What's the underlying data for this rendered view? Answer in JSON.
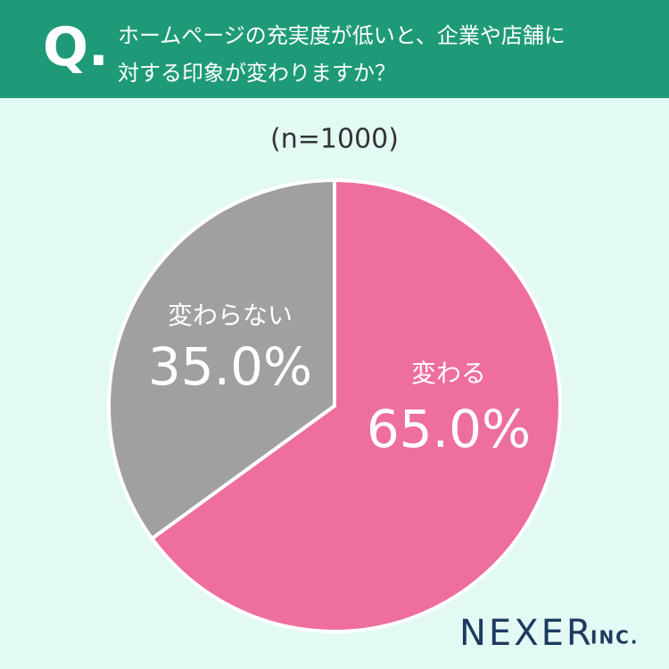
{
  "header": {
    "mark": "Q.",
    "title": [
      "ホームページの充実度が低いと、企業や店舗に",
      "対する印象が変わりますか？"
    ]
  },
  "chart_data": {
    "type": "pie",
    "subtitle": "(n=1000)",
    "categories": [
      "変わる",
      "変わらない"
    ],
    "values": [
      65.0,
      35.0
    ],
    "value_labels": [
      "65.0%",
      "35.0%"
    ],
    "colors": [
      "#ee6e9e",
      "#a0a0a0"
    ]
  },
  "footer": {
    "brand": "NEXER",
    "suffix": "INC."
  }
}
